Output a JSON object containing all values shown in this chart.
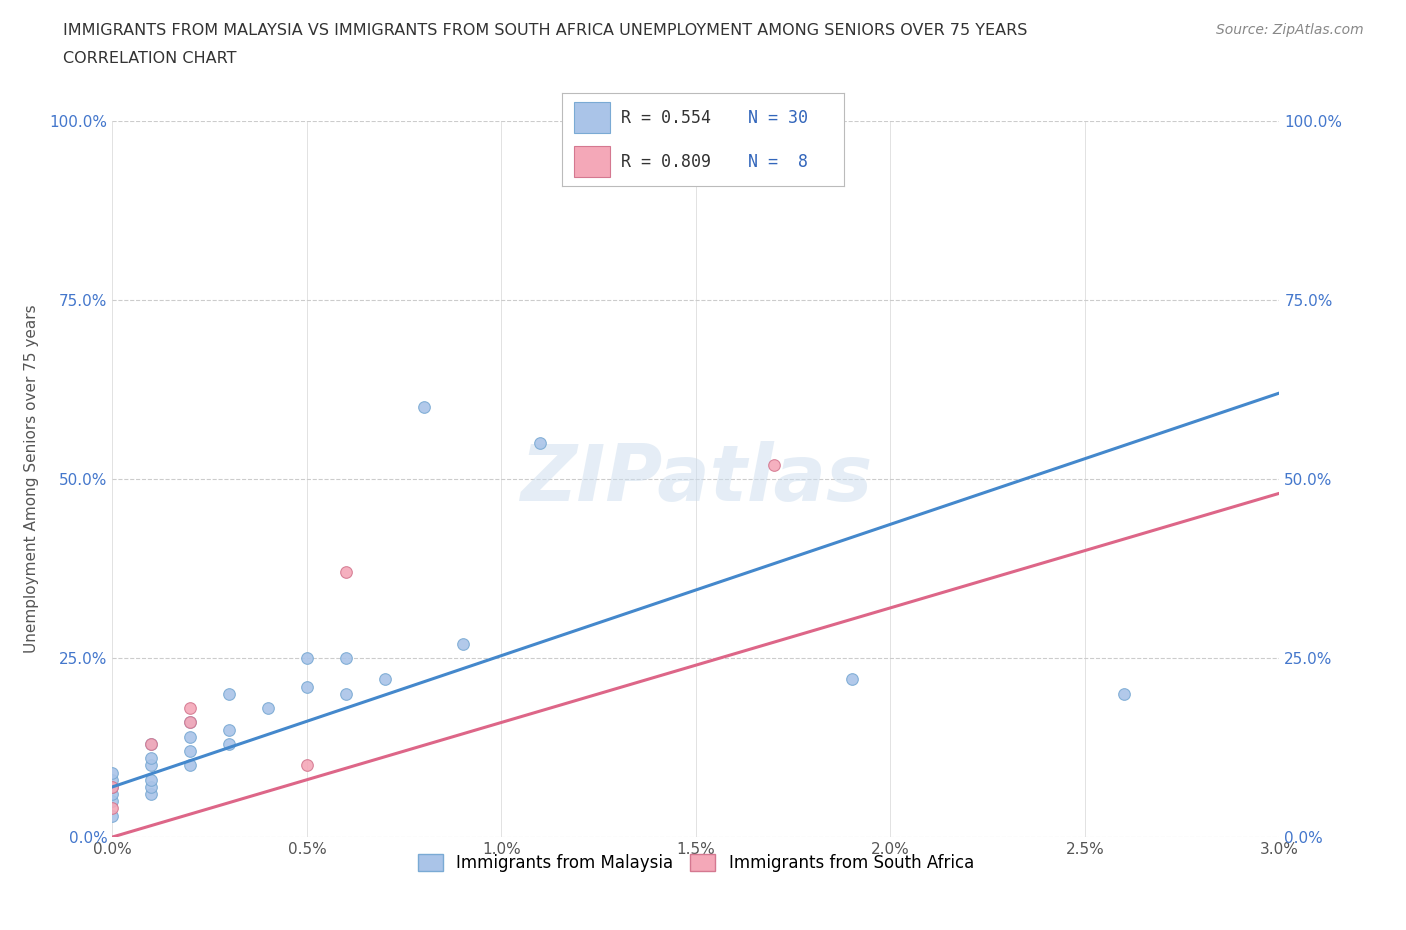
{
  "title_line1": "IMMIGRANTS FROM MALAYSIA VS IMMIGRANTS FROM SOUTH AFRICA UNEMPLOYMENT AMONG SENIORS OVER 75 YEARS",
  "title_line2": "CORRELATION CHART",
  "source": "Source: ZipAtlas.com",
  "ylabel": "Unemployment Among Seniors over 75 years",
  "xlim": [
    0.0,
    0.03
  ],
  "ylim": [
    0.0,
    1.0
  ],
  "xticks": [
    0.0,
    0.005,
    0.01,
    0.015,
    0.02,
    0.025,
    0.03
  ],
  "xticklabels": [
    "0.0%",
    "0.5%",
    "1.0%",
    "1.5%",
    "2.0%",
    "2.5%",
    "3.0%"
  ],
  "yticks": [
    0.0,
    0.25,
    0.5,
    0.75,
    1.0
  ],
  "yticklabels": [
    "0.0%",
    "25.0%",
    "50.0%",
    "75.0%",
    "100.0%"
  ],
  "malaysia_color": "#aac4e8",
  "malaysia_edge": "#7aaad4",
  "south_africa_color": "#f4a8b8",
  "south_africa_edge": "#d47890",
  "malaysia_line_color": "#4488cc",
  "south_africa_line_color": "#dd6688",
  "grid_color": "#cccccc",
  "background_color": "#ffffff",
  "legend_r1": "R = 0.554",
  "legend_n1": "N = 30",
  "legend_r2": "R = 0.809",
  "legend_n2": "N =  8",
  "malaysia_x": [
    0.0,
    0.0,
    0.0,
    0.0,
    0.0,
    0.0,
    0.001,
    0.001,
    0.001,
    0.001,
    0.001,
    0.001,
    0.002,
    0.002,
    0.002,
    0.002,
    0.003,
    0.003,
    0.003,
    0.004,
    0.005,
    0.005,
    0.006,
    0.006,
    0.007,
    0.008,
    0.009,
    0.011,
    0.019,
    0.026
  ],
  "malaysia_y": [
    0.03,
    0.05,
    0.06,
    0.07,
    0.08,
    0.09,
    0.06,
    0.07,
    0.08,
    0.1,
    0.11,
    0.13,
    0.1,
    0.12,
    0.14,
    0.16,
    0.13,
    0.15,
    0.2,
    0.18,
    0.21,
    0.25,
    0.2,
    0.25,
    0.22,
    0.6,
    0.27,
    0.55,
    0.22,
    0.2
  ],
  "south_africa_x": [
    0.0,
    0.0,
    0.001,
    0.002,
    0.002,
    0.005,
    0.006,
    0.017
  ],
  "south_africa_y": [
    0.04,
    0.07,
    0.13,
    0.16,
    0.18,
    0.1,
    0.37,
    0.52
  ],
  "malaysia_size": 70,
  "south_africa_size": 70,
  "malaysia_line_x0": 0.0,
  "malaysia_line_y0": 0.07,
  "malaysia_line_x1": 0.03,
  "malaysia_line_y1": 0.62,
  "south_africa_line_x0": 0.0,
  "south_africa_line_y0": 0.0,
  "south_africa_line_x1": 0.03,
  "south_africa_line_y1": 0.48
}
